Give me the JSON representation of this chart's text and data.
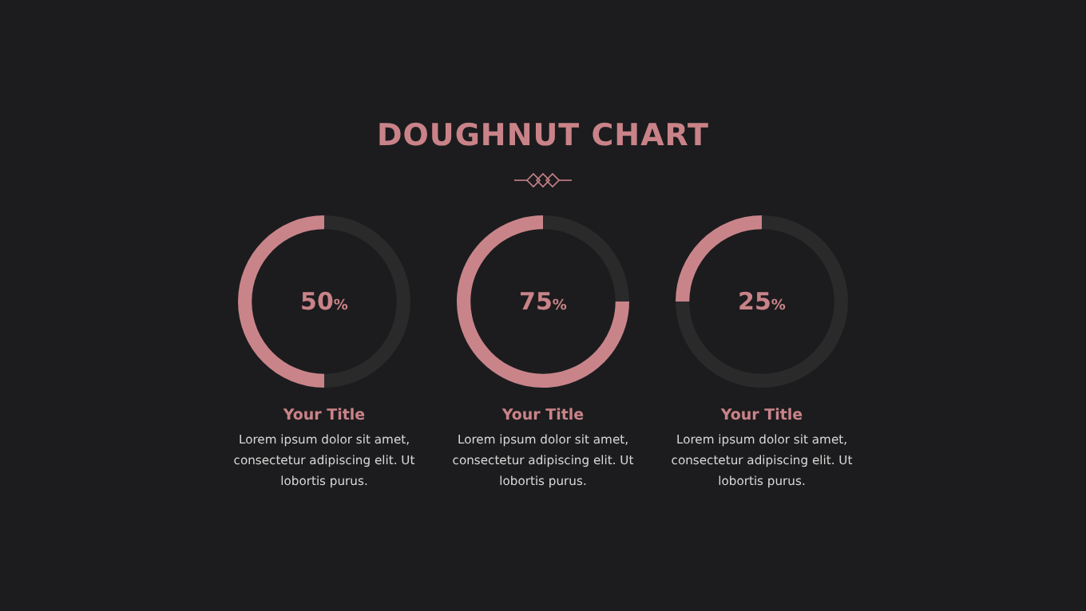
{
  "chart_data": [
    {
      "type": "donut",
      "subtitle": "Your Title",
      "categories": [
        null,
        null
      ],
      "values": [
        50,
        50
      ],
      "colors": [
        "#2a2a2b",
        "#c9848a"
      ],
      "annotations": [
        "50%",
        "Lorem ipsum dolor sit amet, consectetur adipiscing elit. Ut lobortis purus."
      ]
    },
    {
      "type": "donut",
      "title": "DOUGHNUT CHART",
      "subtitle": "Your Title",
      "categories": [
        null,
        null
      ],
      "values": [
        25,
        75
      ],
      "colors": [
        "#2a2a2b",
        "#c9848a"
      ],
      "annotations": [
        "75%",
        "Lorem ipsum dolor sit amet, consectetur adipiscing elit. Ut lobortis purus."
      ]
    },
    {
      "type": "donut",
      "subtitle": "Your Title",
      "categories": [
        null,
        null
      ],
      "values": [
        75,
        25
      ],
      "colors": [
        "#2a2a2b",
        "#c9848a"
      ],
      "annotations": [
        "25%",
        "Lorem ipsum dolor sit amet, consectetur adipiscing elit. Ut lobortis purus."
      ]
    }
  ]
}
